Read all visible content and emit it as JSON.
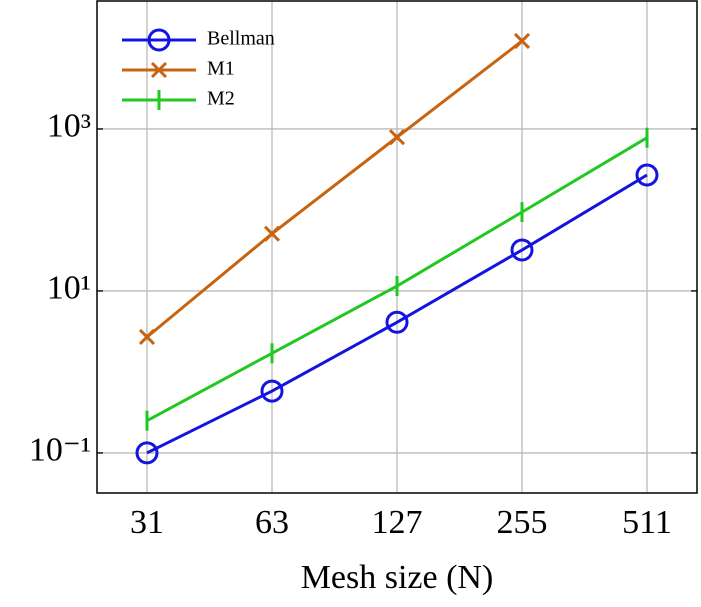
{
  "chart_data": {
    "type": "line",
    "x_label": "Mesh size (N)",
    "categories": [
      31,
      63,
      127,
      255,
      511
    ],
    "series": [
      {
        "name": "Bellman",
        "color": "#1414e0",
        "marker": "circle",
        "values": [
          0.1,
          0.58,
          4.1,
          32,
          270
        ]
      },
      {
        "name": "M1",
        "color": "#c8640f",
        "marker": "x",
        "values": [
          2.7,
          51,
          790,
          12200,
          null
        ]
      },
      {
        "name": "M2",
        "color": "#22c822",
        "marker": "bar",
        "values": [
          0.25,
          1.7,
          11.5,
          94,
          780
        ]
      }
    ],
    "log_y": true,
    "ylim": [
      0.032,
      38000
    ],
    "yticks": [
      {
        "value": 0.1,
        "label": "10⁻¹"
      },
      {
        "value": 10,
        "label": "10¹"
      },
      {
        "value": 1000,
        "label": "10³"
      }
    ],
    "grid": true,
    "legend": "upper-left"
  }
}
